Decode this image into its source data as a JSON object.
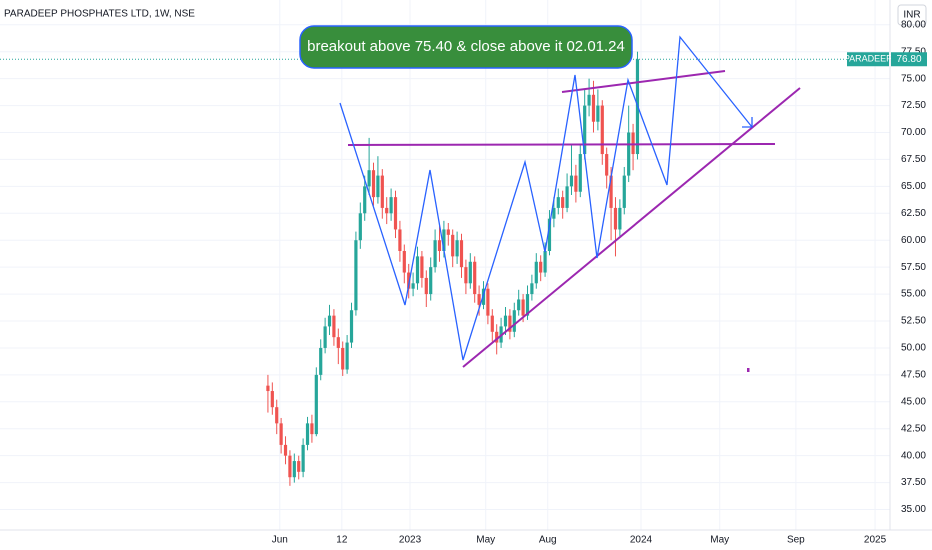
{
  "chart_data": {
    "type": "candlestick",
    "title": "PARADEEP PHOSPHATES LTD, 1W, NSE",
    "currency": "INR",
    "annotation": "breakout above 75.40 &  close above it 02.01.24",
    "last_price": {
      "name": "PARADEEP",
      "value": 76.8,
      "label": "76.80"
    },
    "up_color": "#26a69a",
    "down_color": "#ef5350",
    "grid": true,
    "ylim": [
      33.1,
      82.3
    ],
    "yticks": [
      {
        "value": 35,
        "label": "35.00"
      },
      {
        "value": 37.5,
        "label": "37.50"
      },
      {
        "value": 40,
        "label": "40.00"
      },
      {
        "value": 42.5,
        "label": "42.50"
      },
      {
        "value": 45,
        "label": "45.00"
      },
      {
        "value": 47.5,
        "label": "47.50"
      },
      {
        "value": 50,
        "label": "50.00"
      },
      {
        "value": 52.5,
        "label": "52.50"
      },
      {
        "value": 55,
        "label": "55.00"
      },
      {
        "value": 57.5,
        "label": "57.50"
      },
      {
        "value": 60,
        "label": "60.00"
      },
      {
        "value": 62.5,
        "label": "62.50"
      },
      {
        "value": 65,
        "label": "65.00"
      },
      {
        "value": 67.5,
        "label": "67.50"
      },
      {
        "value": 70,
        "label": "70.00"
      },
      {
        "value": 72.5,
        "label": "72.50"
      },
      {
        "value": 75,
        "label": "75.00"
      },
      {
        "value": 77.5,
        "label": "77.50"
      },
      {
        "value": 80,
        "label": "80.00"
      }
    ],
    "xlim": [
      -60.9,
      141.4
    ],
    "xticks": [
      {
        "value": 2.7,
        "label": "Jun"
      },
      {
        "value": 16.8,
        "label": "12"
      },
      {
        "value": 32.3,
        "label": "2023"
      },
      {
        "value": 49.5,
        "label": "May"
      },
      {
        "value": 63.6,
        "label": "Aug"
      },
      {
        "value": 84.8,
        "label": "2024"
      },
      {
        "value": 102.7,
        "label": "May"
      },
      {
        "value": 120,
        "label": "Sep"
      },
      {
        "value": 138,
        "label": "2025"
      }
    ],
    "open": [
      46.5,
      46.0,
      44.5,
      43.0,
      41.0,
      40.0,
      38.0,
      39.5,
      38.5,
      41.0,
      43.0,
      42.0,
      47.5,
      50.0,
      52.0,
      53.0,
      51.0,
      50.0,
      48.0,
      50.5,
      53.5,
      60.0,
      62.5,
      65.0,
      66.5,
      64.0,
      66.0,
      63.0,
      62.5,
      64.0,
      61.0,
      59.0,
      57.0,
      55.5,
      56.0,
      58.5,
      56.5,
      55.0,
      57.5,
      60.0,
      59.0,
      61.0,
      60.5,
      58.5,
      60.0,
      57.5,
      56.0,
      58.0,
      55.0,
      54.0,
      55.5,
      53.0,
      51.5,
      50.5,
      52.0,
      53.0,
      51.5,
      53.5,
      54.5,
      53.0,
      55.0,
      56.0,
      58.0,
      57.0,
      59.0,
      62.0,
      63.0,
      64.0,
      63.0,
      65.0,
      66.0,
      64.5,
      68.0,
      72.5,
      73.5,
      71.0,
      72.5,
      68.0,
      66.0,
      63.0,
      61.0,
      63.0,
      66.0,
      70.0,
      68.0
    ],
    "high": [
      47.5,
      46.8,
      45.2,
      43.5,
      41.8,
      40.5,
      40.2,
      40.0,
      41.6,
      43.6,
      43.8,
      48.2,
      50.8,
      52.8,
      54.0,
      53.6,
      51.8,
      50.6,
      51.2,
      54.2,
      60.8,
      63.5,
      66.0,
      69.5,
      67.2,
      67.8,
      66.6,
      64.0,
      64.8,
      64.6,
      61.8,
      59.6,
      57.8,
      57.0,
      59.4,
      59.0,
      57.2,
      58.4,
      61.0,
      61.5,
      61.8,
      61.6,
      61.0,
      60.8,
      60.6,
      58.2,
      58.8,
      58.5,
      55.8,
      56.2,
      56.0,
      53.6,
      52.2,
      52.8,
      53.8,
      53.6,
      54.2,
      55.4,
      55.0,
      55.8,
      56.8,
      58.8,
      58.6,
      59.8,
      62.8,
      64.0,
      64.8,
      64.6,
      66.2,
      68.8,
      67.0,
      68.8,
      74.0,
      75.0,
      74.8,
      74.0,
      73.0,
      68.6,
      66.8,
      64.0,
      63.8,
      66.8,
      72.5,
      70.8,
      77.5
    ],
    "low": [
      44.0,
      43.8,
      42.0,
      40.2,
      39.2,
      37.2,
      37.5,
      37.8,
      38.0,
      40.5,
      41.2,
      41.8,
      47.0,
      49.5,
      51.2,
      50.2,
      48.5,
      47.4,
      47.6,
      50.0,
      53.0,
      59.2,
      61.8,
      64.2,
      63.2,
      63.4,
      62.0,
      61.5,
      61.8,
      60.2,
      58.0,
      56.0,
      54.6,
      54.8,
      55.4,
      55.6,
      53.8,
      54.4,
      57.0,
      58.0,
      58.4,
      59.5,
      57.5,
      57.8,
      56.5,
      55.0,
      55.5,
      54.2,
      53.0,
      53.6,
      52.2,
      50.6,
      49.4,
      50.0,
      51.2,
      50.8,
      51.0,
      53.0,
      52.4,
      52.6,
      54.4,
      55.5,
      56.2,
      56.6,
      58.6,
      61.2,
      62.4,
      62.0,
      62.6,
      64.2,
      63.5,
      64.0,
      67.5,
      71.5,
      70.0,
      70.2,
      67.0,
      64.8,
      60.0,
      58.5,
      60.4,
      62.4,
      65.4,
      66.5,
      67.5
    ],
    "close": [
      46.0,
      44.5,
      43.0,
      41.0,
      40.0,
      38.0,
      39.5,
      38.5,
      41.0,
      43.0,
      42.0,
      47.5,
      50.0,
      52.0,
      53.0,
      51.0,
      50.0,
      48.0,
      50.5,
      53.5,
      60.0,
      62.5,
      65.0,
      66.5,
      64.0,
      66.0,
      63.0,
      62.5,
      64.0,
      61.0,
      59.0,
      57.0,
      55.5,
      56.0,
      58.5,
      56.5,
      55.0,
      57.5,
      60.0,
      59.0,
      61.0,
      60.5,
      58.5,
      60.0,
      57.5,
      56.0,
      58.0,
      55.0,
      54.0,
      55.5,
      53.0,
      51.5,
      50.5,
      52.0,
      53.0,
      51.5,
      53.5,
      54.5,
      53.0,
      55.0,
      56.0,
      58.0,
      57.0,
      59.0,
      62.0,
      63.0,
      64.0,
      63.0,
      65.0,
      66.0,
      64.5,
      68.0,
      72.5,
      73.5,
      71.0,
      72.5,
      68.0,
      66.0,
      63.0,
      61.0,
      63.0,
      66.0,
      70.0,
      68.0,
      76.8
    ]
  }
}
